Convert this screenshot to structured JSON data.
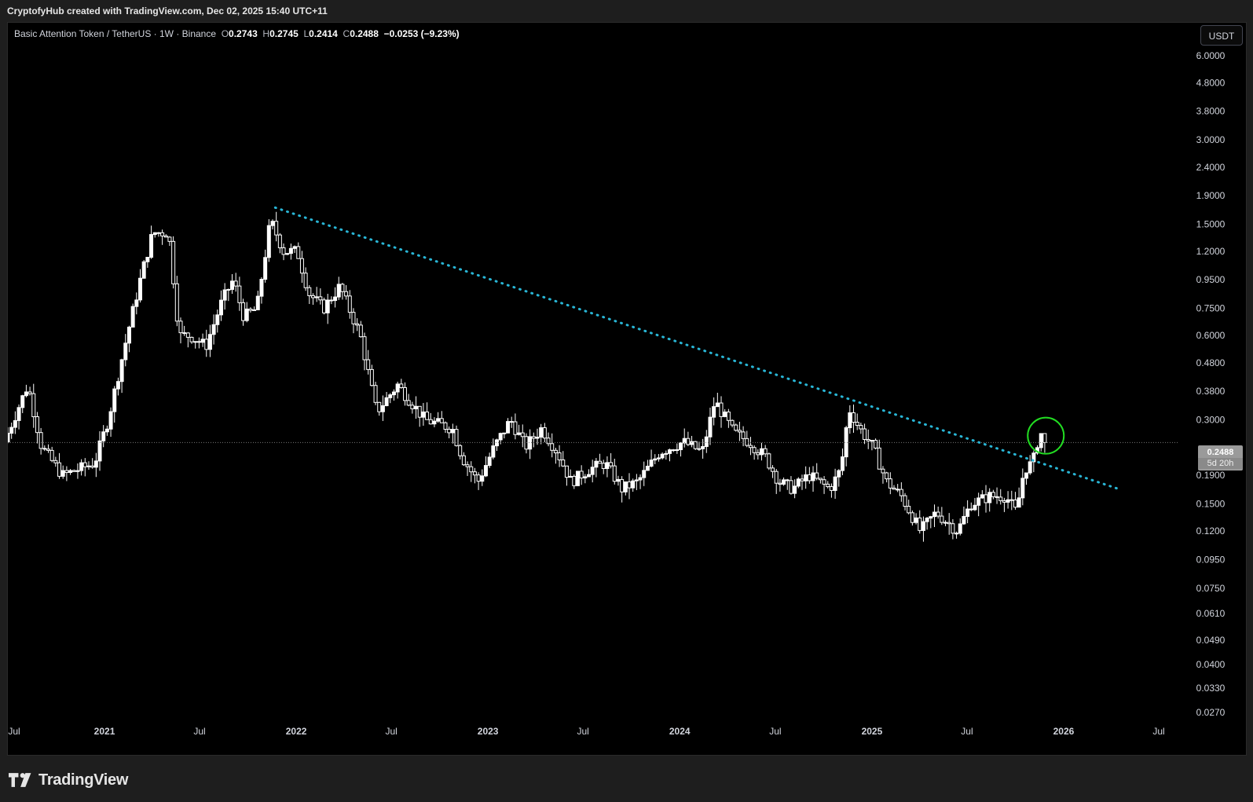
{
  "header": {
    "credit": "CryptofyHub created with TradingView.com, Dec 02, 2025 15:40 UTC+11"
  },
  "legend": {
    "symbol": "Basic Attention Token / TetherUS · 1W · Binance",
    "open_label": "O",
    "open": "0.2743",
    "high_label": "H",
    "high": "0.2745",
    "low_label": "L",
    "low": "0.2414",
    "close_label": "C",
    "close": "0.2488",
    "change": "−0.0253 (−9.23%)"
  },
  "currency_button": "USDT",
  "price_tag": {
    "price": "0.2488",
    "countdown": "5d 20h"
  },
  "footer": {
    "brand": "TradingView"
  },
  "colors": {
    "background": "#000000",
    "candle": "#ffffff",
    "trendline": "#29b6d6",
    "highlight_circle": "#22dd22",
    "grid_text": "#d1d4dc"
  },
  "chart_data": {
    "type": "candlestick",
    "timeframe": "1W",
    "scale": "log",
    "yaxis_ticks": [
      "6.0000",
      "4.8000",
      "3.8000",
      "3.0000",
      "2.4000",
      "1.9000",
      "1.5000",
      "1.2000",
      "0.9500",
      "0.7500",
      "0.6000",
      "0.4800",
      "0.3800",
      "0.3000",
      "0.2488",
      "0.1900",
      "0.1500",
      "0.1200",
      "0.0950",
      "0.0750",
      "0.0610",
      "0.0490",
      "0.0400",
      "0.0330",
      "0.0270"
    ],
    "xaxis_ticks": [
      "Jul",
      "2021",
      "Jul",
      "2022",
      "Jul",
      "2023",
      "Jul",
      "2024",
      "Jul",
      "2025",
      "Jul",
      "2026",
      "Jul"
    ],
    "xaxis_tick_dates": [
      "2020-07-01",
      "2021-01-01",
      "2021-07-01",
      "2022-01-01",
      "2022-07-01",
      "2023-01-01",
      "2023-07-01",
      "2024-01-01",
      "2024-07-01",
      "2025-01-01",
      "2025-07-01",
      "2026-01-01",
      "2026-07-01"
    ],
    "current_price": 0.2488,
    "price_path": [
      [
        "2020-07-01",
        0.25
      ],
      [
        "2020-08-15",
        0.4
      ],
      [
        "2020-09-10",
        0.24
      ],
      [
        "2020-10-20",
        0.19
      ],
      [
        "2020-12-20",
        0.21
      ],
      [
        "2021-01-15",
        0.3
      ],
      [
        "2021-02-20",
        0.6
      ],
      [
        "2021-03-20",
        1.0
      ],
      [
        "2021-04-10",
        1.4
      ],
      [
        "2021-05-10",
        1.4
      ],
      [
        "2021-05-30",
        0.6
      ],
      [
        "2021-06-20",
        0.6
      ],
      [
        "2021-07-20",
        0.55
      ],
      [
        "2021-08-20",
        0.8
      ],
      [
        "2021-09-10",
        0.95
      ],
      [
        "2021-09-30",
        0.7
      ],
      [
        "2021-10-25",
        0.75
      ],
      [
        "2021-11-20",
        1.55
      ],
      [
        "2021-12-15",
        1.2
      ],
      [
        "2022-01-10",
        1.2
      ],
      [
        "2022-02-01",
        0.85
      ],
      [
        "2022-03-01",
        0.75
      ],
      [
        "2022-04-01",
        0.9
      ],
      [
        "2022-05-10",
        0.6
      ],
      [
        "2022-06-10",
        0.32
      ],
      [
        "2022-07-20",
        0.4
      ],
      [
        "2022-09-10",
        0.3
      ],
      [
        "2022-11-01",
        0.28
      ],
      [
        "2022-11-20",
        0.22
      ],
      [
        "2022-12-20",
        0.18
      ],
      [
        "2023-01-20",
        0.24
      ],
      [
        "2023-02-20",
        0.3
      ],
      [
        "2023-03-20",
        0.24
      ],
      [
        "2023-04-20",
        0.28
      ],
      [
        "2023-05-20",
        0.23
      ],
      [
        "2023-06-15",
        0.18
      ],
      [
        "2023-07-20",
        0.2
      ],
      [
        "2023-08-20",
        0.21
      ],
      [
        "2023-09-20",
        0.17
      ],
      [
        "2023-10-20",
        0.18
      ],
      [
        "2023-12-01",
        0.23
      ],
      [
        "2024-01-15",
        0.25
      ],
      [
        "2024-02-20",
        0.23
      ],
      [
        "2024-03-15",
        0.35
      ],
      [
        "2024-04-20",
        0.27
      ],
      [
        "2024-05-20",
        0.25
      ],
      [
        "2024-06-20",
        0.22
      ],
      [
        "2024-07-15",
        0.18
      ],
      [
        "2024-08-10",
        0.17
      ],
      [
        "2024-09-10",
        0.19
      ],
      [
        "2024-10-20",
        0.17
      ],
      [
        "2024-11-10",
        0.2
      ],
      [
        "2024-11-25",
        0.33
      ],
      [
        "2024-12-15",
        0.28
      ],
      [
        "2025-01-10",
        0.24
      ],
      [
        "2025-02-05",
        0.18
      ],
      [
        "2025-03-05",
        0.16
      ],
      [
        "2025-04-10",
        0.12
      ],
      [
        "2025-05-10",
        0.14
      ],
      [
        "2025-06-20",
        0.12
      ],
      [
        "2025-07-15",
        0.15
      ],
      [
        "2025-08-20",
        0.16
      ],
      [
        "2025-09-20",
        0.16
      ],
      [
        "2025-10-10",
        0.14
      ],
      [
        "2025-10-25",
        0.2
      ],
      [
        "2025-11-10",
        0.21
      ],
      [
        "2025-11-24",
        0.2743
      ],
      [
        "2025-12-02",
        0.2488
      ]
    ],
    "trendline": {
      "start": [
        "2021-11-22",
        1.72
      ],
      "end": [
        "2026-04-15",
        0.17
      ]
    },
    "annotation": {
      "type": "circle",
      "date": "2025-11-28",
      "price": 0.25
    }
  }
}
